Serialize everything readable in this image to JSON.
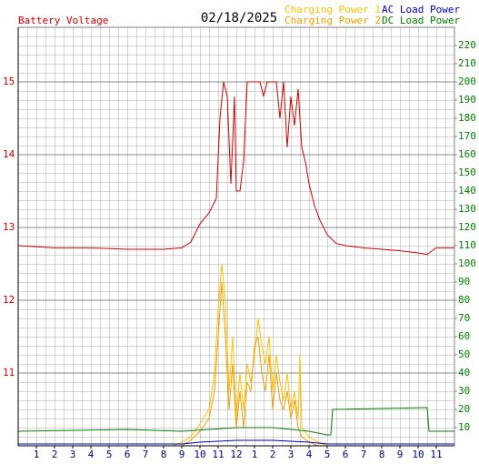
{
  "chart_data": {
    "type": "line",
    "title": "02/18/2025",
    "ylabel": "Battery Voltage",
    "xlim": [
      0,
      24
    ],
    "xticks": [
      {
        "value": 1,
        "label": "1"
      },
      {
        "value": 2,
        "label": "2"
      },
      {
        "value": 3,
        "label": "3"
      },
      {
        "value": 4,
        "label": "4"
      },
      {
        "value": 5,
        "label": "5"
      },
      {
        "value": 6,
        "label": "6"
      },
      {
        "value": 7,
        "label": "7"
      },
      {
        "value": 8,
        "label": "8"
      },
      {
        "value": 9,
        "label": "9"
      },
      {
        "value": 10,
        "label": "10"
      },
      {
        "value": 11,
        "label": "11"
      },
      {
        "value": 12,
        "label": "12"
      },
      {
        "value": 13,
        "label": "1"
      },
      {
        "value": 14,
        "label": "2"
      },
      {
        "value": 15,
        "label": "3"
      },
      {
        "value": 16,
        "label": "4"
      },
      {
        "value": 17,
        "label": "5"
      },
      {
        "value": 18,
        "label": "6"
      },
      {
        "value": 19,
        "label": "7"
      },
      {
        "value": 20,
        "label": "8"
      },
      {
        "value": 21,
        "label": "9"
      },
      {
        "value": 22,
        "label": "10"
      },
      {
        "value": 23,
        "label": "11"
      }
    ],
    "ylim": [
      10,
      15.75
    ],
    "yticks": [
      11,
      12,
      13,
      14,
      15
    ],
    "y2lim": [
      0,
      230
    ],
    "y2ticks": [
      10,
      20,
      30,
      40,
      50,
      60,
      70,
      80,
      90,
      100,
      110,
      120,
      130,
      140,
      150,
      160,
      170,
      180,
      190,
      200,
      210,
      220
    ],
    "grid": true,
    "series": [
      {
        "name": "Battery Voltage",
        "color": "#d00000",
        "axis": "y",
        "x": [
          0,
          2,
          4,
          6,
          8,
          9,
          9.5,
          10,
          10.5,
          10.9,
          11.1,
          11.3,
          11.5,
          11.7,
          11.9,
          12.0,
          12.2,
          12.4,
          12.6,
          12.8,
          13.0,
          13.3,
          13.5,
          13.7,
          14.0,
          14.2,
          14.4,
          14.6,
          14.8,
          15.0,
          15.2,
          15.4,
          15.6,
          15.8,
          16.0,
          16.3,
          16.6,
          17.0,
          17.5,
          18,
          19,
          20,
          21,
          22,
          22.5,
          23,
          24
        ],
        "values": [
          12.75,
          12.72,
          12.72,
          12.7,
          12.7,
          12.72,
          12.8,
          13.05,
          13.2,
          13.4,
          14.5,
          15.0,
          14.8,
          13.6,
          14.8,
          13.5,
          13.5,
          13.9,
          15.0,
          15.0,
          15.0,
          15.0,
          14.8,
          15.0,
          15.0,
          15.0,
          14.5,
          15.0,
          14.1,
          14.8,
          14.4,
          14.9,
          14.1,
          13.9,
          13.6,
          13.3,
          13.1,
          12.9,
          12.78,
          12.75,
          12.72,
          12.7,
          12.68,
          12.65,
          12.63,
          12.72,
          12.72
        ]
      },
      {
        "name": "Charging Power 1",
        "color": "#ffc000",
        "axis": "y2",
        "x": [
          0,
          8.5,
          9,
          9.5,
          10,
          10.5,
          10.8,
          11.0,
          11.2,
          11.4,
          11.6,
          11.8,
          12.0,
          12.2,
          12.4,
          12.6,
          12.8,
          13.0,
          13.2,
          13.4,
          13.6,
          13.8,
          14.0,
          14.2,
          14.4,
          14.6,
          14.8,
          15.0,
          15.2,
          15.4,
          15.5,
          15.6,
          16.0,
          16.5,
          17,
          24
        ],
        "values": [
          0,
          0,
          2,
          5,
          12,
          20,
          40,
          75,
          100,
          80,
          30,
          60,
          15,
          40,
          20,
          45,
          35,
          50,
          70,
          55,
          45,
          60,
          30,
          50,
          35,
          25,
          40,
          20,
          30,
          15,
          50,
          10,
          5,
          2,
          0,
          0
        ]
      },
      {
        "name": "Charging Power 2",
        "color": "#f0a000",
        "axis": "y2",
        "x": [
          0,
          9,
          9.5,
          10,
          10.5,
          10.8,
          11,
          11.2,
          11.4,
          11.6,
          11.8,
          12,
          12.2,
          12.4,
          12.6,
          12.8,
          13.0,
          13.2,
          13.4,
          13.6,
          13.8,
          14,
          14.2,
          14.4,
          14.6,
          14.8,
          15,
          15.2,
          15.4,
          15.6,
          16,
          16.5,
          24
        ],
        "values": [
          0,
          0,
          3,
          8,
          15,
          30,
          60,
          90,
          60,
          20,
          45,
          10,
          30,
          10,
          35,
          30,
          55,
          60,
          40,
          30,
          50,
          20,
          40,
          25,
          20,
          30,
          15,
          25,
          10,
          5,
          2,
          0,
          0
        ]
      },
      {
        "name": "AC Load Power",
        "color": "#0000c0",
        "axis": "y2",
        "x": [
          0,
          9,
          10,
          12,
          14,
          16,
          17,
          24
        ],
        "values": [
          1,
          1,
          2,
          3,
          3,
          2,
          1,
          1
        ]
      },
      {
        "name": "DC Load Power",
        "color": "#008000",
        "axis": "y2",
        "x": [
          0,
          6,
          9,
          12,
          14,
          16,
          17,
          17.2,
          17.3,
          22.5,
          22.6,
          24
        ],
        "values": [
          8,
          9,
          8,
          10,
          10,
          8,
          6,
          6,
          20,
          21,
          8,
          8
        ]
      }
    ]
  }
}
